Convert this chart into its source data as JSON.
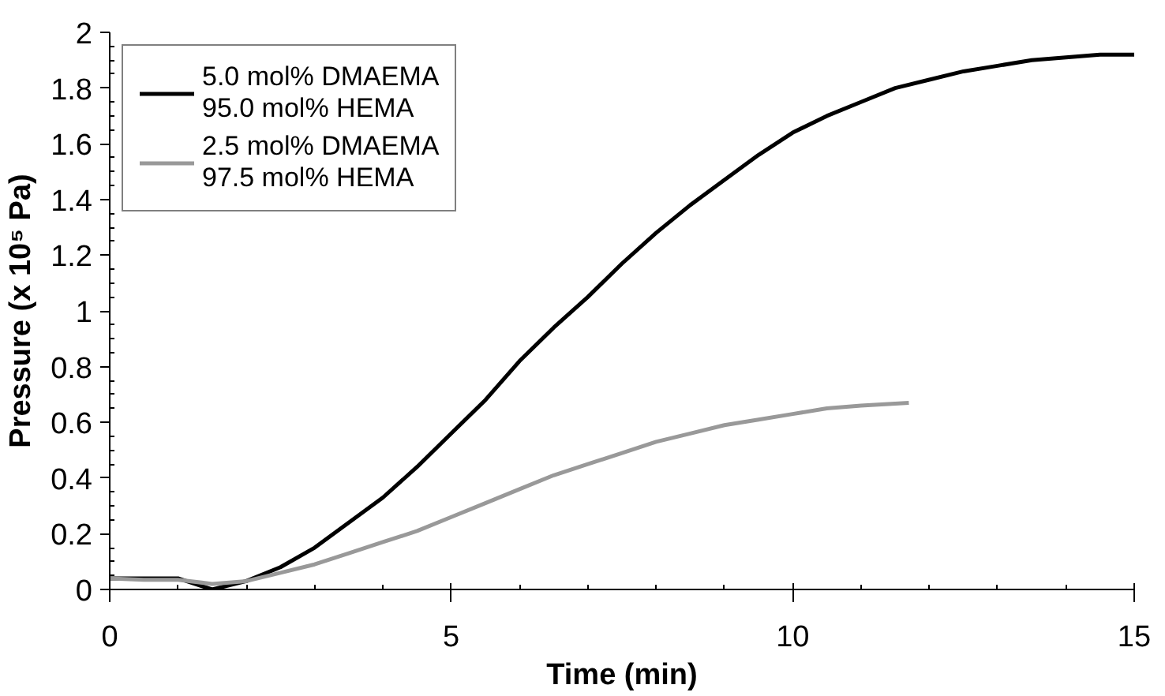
{
  "chart_data": {
    "type": "line",
    "xlabel": "Time (min)",
    "ylabel": "Pressure (x 10⁵ Pa)",
    "xlim": [
      0,
      15
    ],
    "ylim": [
      0,
      2
    ],
    "xticks": [
      0,
      5,
      10,
      15
    ],
    "yticks": [
      0,
      {
        "value": 0.2,
        "label": "0.2"
      },
      {
        "value": 0.4,
        "label": "0.4"
      },
      {
        "value": 0.6,
        "label": "0.6"
      },
      {
        "value": 0.8,
        "label": "0.8"
      },
      1,
      {
        "value": 1.2,
        "label": "1.2"
      },
      {
        "value": 1.4,
        "label": "1.4"
      },
      {
        "value": 1.6,
        "label": "1.6"
      },
      {
        "value": 1.8,
        "label": "1.8"
      },
      2
    ],
    "grid": false,
    "legend": "top left",
    "line_style": "solid",
    "series": [
      {
        "name": "5.0 mol% DMAEMA\n95.0 mol% HEMA",
        "color": "#000000",
        "x": [
          0,
          0.5,
          1,
          1.5,
          2,
          2.5,
          3,
          3.5,
          4,
          4.5,
          5,
          5.5,
          6,
          6.5,
          7,
          7.5,
          8,
          8.5,
          9,
          9.5,
          10,
          10.5,
          11,
          11.5,
          12,
          12.5,
          13,
          13.5,
          14,
          14.5,
          15
        ],
        "values": [
          0.04,
          0.04,
          0.04,
          0.0,
          0.03,
          0.08,
          0.15,
          0.24,
          0.33,
          0.44,
          0.56,
          0.68,
          0.82,
          0.94,
          1.05,
          1.17,
          1.28,
          1.38,
          1.47,
          1.56,
          1.64,
          1.7,
          1.75,
          1.8,
          1.83,
          1.86,
          1.88,
          1.9,
          1.91,
          1.92,
          1.92
        ]
      },
      {
        "name": "2.5 mol% DMAEMA\n97.5 mol% HEMA",
        "color": "#999999",
        "x": [
          0,
          0.5,
          1,
          1.5,
          2,
          2.5,
          3,
          3.5,
          4,
          4.5,
          5,
          5.5,
          6,
          6.5,
          7,
          7.5,
          8,
          8.5,
          9,
          9.5,
          10,
          10.5,
          11,
          11.7
        ],
        "values": [
          0.04,
          0.035,
          0.035,
          0.02,
          0.03,
          0.06,
          0.09,
          0.13,
          0.17,
          0.21,
          0.26,
          0.31,
          0.36,
          0.41,
          0.45,
          0.49,
          0.53,
          0.56,
          0.59,
          0.61,
          0.63,
          0.65,
          0.66,
          0.67
        ]
      }
    ]
  }
}
